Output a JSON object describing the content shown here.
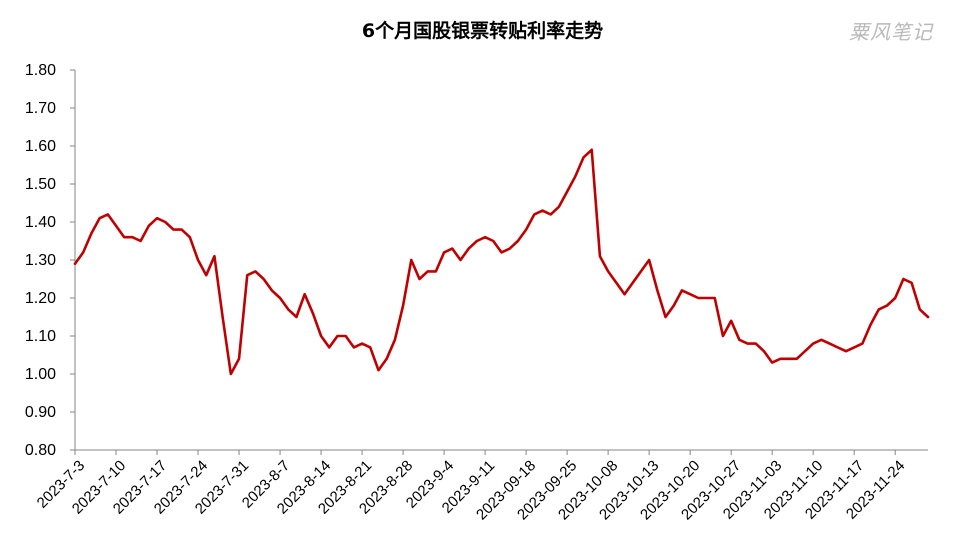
{
  "chart_data": {
    "type": "line",
    "title": "6个月国股银票转贴利率走势",
    "watermark": "粟风笔记",
    "xlabel": "",
    "ylabel": "",
    "ylim": [
      0.8,
      1.8
    ],
    "yticks": [
      "0.80",
      "0.90",
      "1.00",
      "1.10",
      "1.20",
      "1.30",
      "1.40",
      "1.50",
      "1.60",
      "1.70",
      "1.80"
    ],
    "x_tick_labels": [
      "2023-7-3",
      "2023-7-10",
      "2023-7-17",
      "2023-7-24",
      "2023-7-31",
      "2023-8-7",
      "2023-8-14",
      "2023-8-21",
      "2023-8-28",
      "2023-9-4",
      "2023-9-11",
      "2023-09-18",
      "2023-09-25",
      "2023-10-08",
      "2023-10-13",
      "2023-10-20",
      "2023-10-27",
      "2023-11-03",
      "2023-11-10",
      "2023-11-17",
      "2023-11-24"
    ],
    "grid": false,
    "legend": "none",
    "line_color": "#C00000",
    "series": [
      {
        "values": [
          1.29,
          1.32,
          1.37,
          1.41,
          1.42,
          1.39,
          1.36,
          1.36,
          1.35,
          1.39,
          1.41,
          1.4,
          1.38,
          1.38,
          1.36,
          1.3,
          1.26,
          1.31,
          1.15,
          1.0,
          1.04,
          1.26,
          1.27,
          1.25,
          1.22,
          1.2,
          1.17,
          1.15,
          1.21,
          1.16,
          1.1,
          1.07,
          1.1,
          1.1,
          1.07,
          1.08,
          1.07,
          1.01,
          1.04,
          1.09,
          1.18,
          1.3,
          1.25,
          1.27,
          1.27,
          1.32,
          1.33,
          1.3,
          1.33,
          1.35,
          1.36,
          1.35,
          1.32,
          1.33,
          1.35,
          1.38,
          1.42,
          1.43,
          1.42,
          1.44,
          1.48,
          1.52,
          1.57,
          1.59,
          1.31,
          1.27,
          1.24,
          1.21,
          1.24,
          1.27,
          1.3,
          1.22,
          1.15,
          1.18,
          1.22,
          1.21,
          1.2,
          1.2,
          1.2,
          1.1,
          1.14,
          1.09,
          1.08,
          1.08,
          1.06,
          1.03,
          1.04,
          1.04,
          1.04,
          1.06,
          1.08,
          1.09,
          1.08,
          1.07,
          1.06,
          1.07,
          1.08,
          1.13,
          1.17,
          1.18,
          1.2,
          1.25,
          1.24,
          1.17,
          1.15
        ]
      }
    ]
  }
}
